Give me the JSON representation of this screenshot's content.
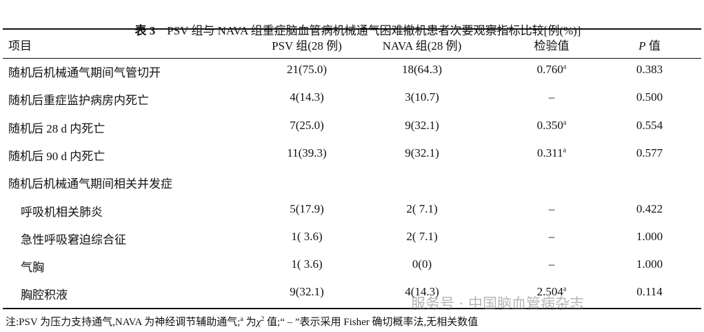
{
  "title": {
    "label": "表 3",
    "text": "PSV 组与 NAVA 组重症脑血管病机械通气困难撤机患者次要观察指标比较[例(%)]"
  },
  "table": {
    "header": [
      "项目",
      "PSV 组(28 例)",
      "NAVA 组(28 例)",
      "检验值",
      {
        "italic": "P",
        "text": " 值"
      }
    ],
    "rows": [
      [
        "随机后机械通气期间气管切开",
        "21(75.0)",
        "18(64.3)",
        {
          "text": "0.760",
          "sup": "a"
        },
        "0.383"
      ],
      [
        "随机后重症监护病房内死亡",
        "4(14.3)",
        "3(10.7)",
        "–",
        "0.500"
      ],
      [
        "随机后 28 d 内死亡",
        "7(25.0)",
        "9(32.1)",
        {
          "text": "0.350",
          "sup": "a"
        },
        "0.554"
      ],
      [
        "随机后 90 d 内死亡",
        "11(39.3)",
        "9(32.1)",
        {
          "text": "0.311",
          "sup": "a"
        },
        "0.577"
      ]
    ],
    "group": {
      "label": "随机后机械通气期间相关并发症",
      "rows": [
        [
          "呼吸机相关肺炎",
          "5(17.9)",
          "2( 7.1)",
          "–",
          "0.422"
        ],
        [
          "急性呼吸窘迫综合征",
          "1( 3.6)",
          "2( 7.1)",
          "–",
          "1.000"
        ],
        [
          "气胸",
          "1( 3.6)",
          "0(0)",
          "–",
          "1.000"
        ],
        [
          "胸腔积液",
          "9(32.1)",
          "4(14.3)",
          {
            "text": "2.504",
            "sup": "a"
          },
          "0.114"
        ]
      ]
    }
  },
  "footnote": [
    {
      "text": "注:PSV 为压力支持通气,NAVA 为神经调节辅助通气;"
    },
    {
      "sup": "a"
    },
    {
      "text": " 为"
    },
    {
      "italic": "χ"
    },
    {
      "sup": "2"
    },
    {
      "text": " 值;“ – ”表示采用 Fisher 确切概率法,无相关数值"
    }
  ],
  "watermark": "服务号 · 中国脑血管病杂志"
}
